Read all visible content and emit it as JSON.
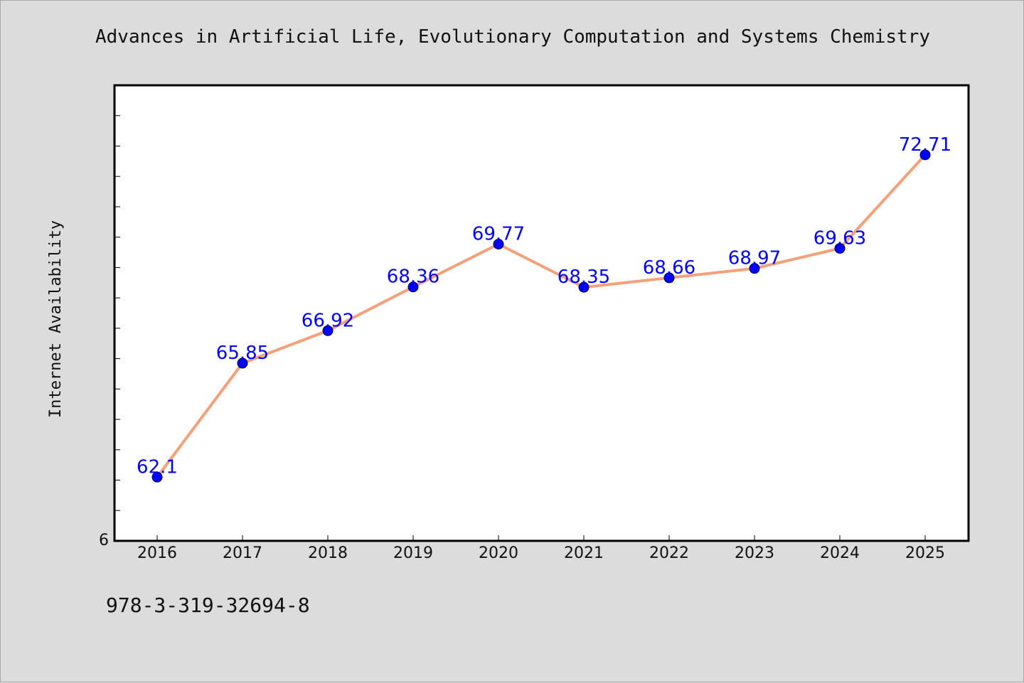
{
  "caption": "978-3-319-32694-8",
  "chart_data": {
    "type": "line",
    "title": "Advances in Artificial Life, Evolutionary Computation and Systems Chemistry",
    "xlabel": "",
    "ylabel": "Internet Availability",
    "categories": [
      "2016",
      "2017",
      "2018",
      "2019",
      "2020",
      "2021",
      "2022",
      "2023",
      "2024",
      "2025"
    ],
    "series": [
      {
        "values": [
          62.1,
          65.85,
          66.92,
          68.36,
          69.77,
          68.35,
          68.66,
          68.97,
          69.63,
          72.71
        ],
        "data_labels": [
          "62.1",
          "65.85",
          "66.92",
          "68.36",
          "69.77",
          "68.35",
          "68.66",
          "68.97",
          "69.63",
          "72.71"
        ],
        "line_color": "#f4a07a",
        "marker_color": "#0000ff"
      }
    ],
    "ylim": [
      60,
      75
    ],
    "y_tick_labels": [
      "6"
    ],
    "y_minor_tick_step": 1,
    "grid": false,
    "legend": "none",
    "plot_background": "#ffffff",
    "page_background": "#dcdcdc",
    "label_color": "#0000ff"
  }
}
